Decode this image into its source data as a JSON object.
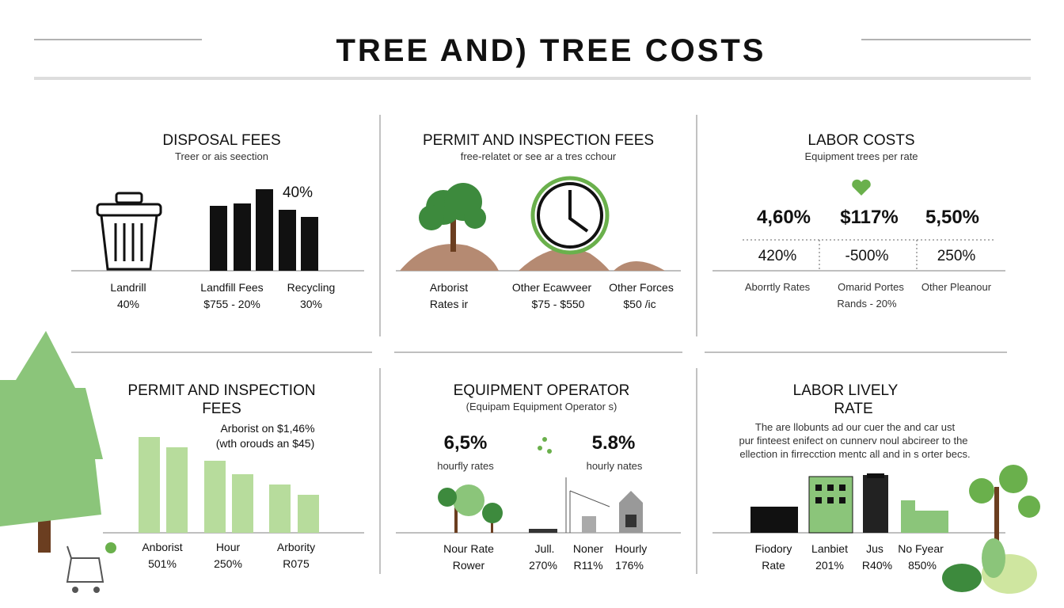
{
  "header": {
    "title": "TREE AND) TREE COSTS"
  },
  "panels": [
    {
      "title": "DISPOSAL FEES",
      "subtitle": "Treer or ais seection",
      "highlight": "40%",
      "items": [
        {
          "label": "Landrill",
          "value": "40%"
        },
        {
          "label": "Landfill Fees",
          "value": "$755 - 20%"
        },
        {
          "label": "Recycling",
          "value": "30%"
        }
      ]
    },
    {
      "title": "PERMIT AND INSPECTION FEES",
      "subtitle": "free-relatet or see ar a tres cchour",
      "items": [
        {
          "label": "Arborist",
          "value": "Rates ir"
        },
        {
          "label": "Other Ecawveer",
          "value": "$75 - $550"
        },
        {
          "label": "Other Forces",
          "value": "$50 /ic"
        }
      ]
    },
    {
      "title": "LABOR COSTS",
      "subtitle": "Equipment trees per rate",
      "stats": [
        "4,60%",
        "$117%",
        "5,50%"
      ],
      "substats": [
        "420%",
        "-500%",
        "250%"
      ],
      "items": [
        {
          "label": "Aborrtly Rates"
        },
        {
          "label": "Omarid Portes",
          "value": "Rands - 20%"
        },
        {
          "label": "Other Pleanour"
        }
      ]
    },
    {
      "title": [
        "PERMIT AND INSPECTION",
        "FEES"
      ],
      "note": [
        "Arborist on $1,46%",
        "(wth orouds an $45)"
      ],
      "items": [
        {
          "label": "Anborist",
          "value": "501%"
        },
        {
          "label": "Hour",
          "value": "250%"
        },
        {
          "label": "Arbority",
          "value": "R075"
        }
      ]
    },
    {
      "title": "EQUIPMENT OPERATOR",
      "subtitle": "(Equipam Equipment Operator s)",
      "stats": [
        {
          "value": "6,5%",
          "label": "hourfly rates"
        },
        {
          "value": "5.8%",
          "label": "hourly nates"
        }
      ],
      "items": [
        {
          "label": "Nour Rate",
          "value": "Rower"
        },
        {
          "label": "Jull.",
          "value": "270%"
        },
        {
          "label": "Noner",
          "value": "R11%"
        },
        {
          "label": "Hourly",
          "value": "176%"
        }
      ]
    },
    {
      "title": [
        "LABOR LIVELY",
        "RATE"
      ],
      "paragraph": [
        "The are llobunts ad our cuer the and car ust",
        "pur finteest enifect on cunnerv noul abcireer to the",
        "ellection in firrecction mentc all and in s orter becs."
      ],
      "items": [
        {
          "label": "Fiodory",
          "value": "Rate"
        },
        {
          "label": "Lanbiet",
          "value": "201%"
        },
        {
          "label": "Jus",
          "value": "R40%"
        },
        {
          "label": "No Fyear",
          "value": "850%"
        }
      ]
    }
  ]
}
